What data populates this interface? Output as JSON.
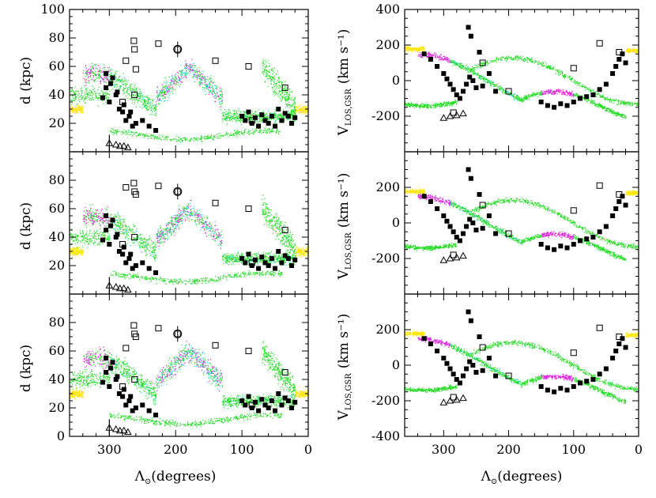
{
  "figure": {
    "description_free": true
  },
  "colors": {
    "green": "#22dd22",
    "cyan": "#22d0e6",
    "magenta": "#e020e0",
    "yellow": "#ffe600",
    "marker": "#000000"
  },
  "chart_data": [
    {
      "id": "left-top",
      "type": "scatter",
      "xlabel": "Λ⊙(degrees)",
      "ylabel": "d (kpc)",
      "xlim": [
        360,
        0
      ],
      "ylim": [
        0,
        100
      ],
      "xticks": [
        300,
        200,
        100,
        0
      ],
      "yticks": [
        20,
        40,
        60,
        80,
        100
      ],
      "show_xtick_labels": false,
      "series": [
        {
          "name": "model-stars",
          "style": "dots"
        },
        {
          "name": "filled-squares",
          "style": "filled-square",
          "x": [
            310,
            305,
            300,
            295,
            290,
            285,
            280,
            275,
            270,
            265,
            260,
            250,
            240,
            230,
            100,
            95,
            90,
            85,
            80,
            75,
            70,
            65,
            60,
            55,
            50,
            45,
            40,
            35,
            30,
            25,
            20,
            305,
            298,
            288,
            278,
            268
          ],
          "y": [
            38,
            45,
            35,
            52,
            40,
            30,
            28,
            22,
            25,
            18,
            20,
            22,
            18,
            15,
            25,
            22,
            28,
            20,
            24,
            18,
            26,
            22,
            20,
            25,
            18,
            30,
            22,
            27,
            25,
            20,
            24,
            55,
            48,
            42,
            33,
            28
          ]
        },
        {
          "name": "open-squares",
          "style": "open-square",
          "x": [
            275,
            263,
            262,
            260,
            226,
            197,
            140,
            90,
            85,
            35,
            262,
            280
          ],
          "y": [
            64,
            78,
            72,
            58,
            76,
            72,
            64,
            60,
            22,
            45,
            40,
            35
          ]
        },
        {
          "name": "open-triangles",
          "style": "open-triangle",
          "x": [
            300,
            290,
            284,
            278,
            272
          ],
          "y": [
            6,
            5,
            4,
            4,
            3
          ]
        }
      ]
    },
    {
      "id": "left-middle",
      "type": "scatter",
      "xlabel": "Λ⊙(degrees)",
      "ylabel": "d (kpc)",
      "xlim": [
        360,
        0
      ],
      "ylim": [
        0,
        100
      ],
      "xticks": [
        300,
        200,
        100,
        0
      ],
      "yticks": [
        20,
        40,
        60,
        80
      ],
      "show_xtick_labels": false,
      "series": [
        {
          "name": "model-stars",
          "style": "dots"
        },
        {
          "name": "filled-squares",
          "style": "filled-square",
          "x": [
            310,
            305,
            300,
            295,
            290,
            285,
            280,
            275,
            270,
            265,
            260,
            250,
            240,
            230,
            100,
            95,
            90,
            85,
            80,
            75,
            70,
            65,
            60,
            55,
            50,
            45,
            40,
            35,
            30,
            25,
            20,
            305,
            298,
            288,
            278,
            268
          ],
          "y": [
            38,
            45,
            35,
            52,
            40,
            30,
            28,
            22,
            25,
            18,
            20,
            22,
            18,
            15,
            25,
            22,
            28,
            20,
            24,
            18,
            26,
            22,
            20,
            25,
            18,
            30,
            22,
            27,
            25,
            20,
            24,
            55,
            48,
            42,
            33,
            28
          ]
        },
        {
          "name": "open-squares",
          "style": "open-square",
          "x": [
            275,
            263,
            262,
            260,
            226,
            197,
            140,
            90,
            85,
            35,
            262,
            280
          ],
          "y": [
            75,
            78,
            72,
            70,
            76,
            72,
            64,
            60,
            22,
            45,
            40,
            35
          ]
        },
        {
          "name": "open-triangles",
          "style": "open-triangle",
          "x": [
            300,
            290,
            284,
            278,
            272
          ],
          "y": [
            6,
            5,
            4,
            4,
            3
          ]
        }
      ]
    },
    {
      "id": "left-bottom",
      "type": "scatter",
      "xlabel": "Λ⊙(degrees)",
      "ylabel": "d (kpc)",
      "xlim": [
        360,
        0
      ],
      "ylim": [
        0,
        100
      ],
      "xticks": [
        300,
        200,
        100,
        0
      ],
      "yticks": [
        0,
        20,
        40,
        60,
        80
      ],
      "show_xtick_labels": true,
      "series": [
        {
          "name": "model-stars",
          "style": "dots"
        },
        {
          "name": "filled-squares",
          "style": "filled-square",
          "x": [
            310,
            305,
            300,
            295,
            290,
            285,
            280,
            275,
            270,
            265,
            260,
            250,
            240,
            230,
            100,
            95,
            90,
            85,
            80,
            75,
            70,
            65,
            60,
            55,
            50,
            45,
            40,
            35,
            30,
            25,
            20,
            305,
            298,
            288,
            278,
            268
          ],
          "y": [
            38,
            45,
            35,
            52,
            40,
            30,
            28,
            22,
            25,
            18,
            20,
            22,
            18,
            15,
            25,
            22,
            28,
            20,
            24,
            18,
            26,
            22,
            20,
            25,
            18,
            30,
            22,
            27,
            25,
            20,
            24,
            55,
            48,
            42,
            33,
            28
          ]
        },
        {
          "name": "open-squares",
          "style": "open-square",
          "x": [
            275,
            263,
            262,
            260,
            226,
            197,
            140,
            90,
            85,
            35,
            262,
            280
          ],
          "y": [
            62,
            78,
            72,
            70,
            76,
            72,
            64,
            60,
            22,
            45,
            40,
            35
          ]
        },
        {
          "name": "open-triangles",
          "style": "open-triangle",
          "x": [
            300,
            290,
            284,
            278,
            272
          ],
          "y": [
            6,
            5,
            4,
            4,
            3
          ]
        }
      ]
    },
    {
      "id": "right-top",
      "type": "scatter",
      "xlabel": "Λ⊙(degrees)",
      "ylabel": "VLOS,GSR (km s⁻¹)",
      "xlim": [
        360,
        0
      ],
      "ylim": [
        -400,
        400
      ],
      "xticks": [
        300,
        200,
        100,
        0
      ],
      "yticks": [
        -200,
        0,
        200,
        400
      ],
      "show_xtick_labels": false,
      "series": [
        {
          "name": "model-stars",
          "style": "dots"
        },
        {
          "name": "filled-squares",
          "style": "filled-square",
          "x": [
            330,
            320,
            310,
            300,
            295,
            290,
            285,
            280,
            275,
            270,
            265,
            260,
            255,
            250,
            240,
            230,
            220,
            150,
            140,
            130,
            120,
            110,
            100,
            90,
            80,
            70,
            60,
            50,
            40,
            35,
            30,
            25,
            20,
            262,
            258,
            245
          ],
          "y": [
            150,
            120,
            80,
            40,
            10,
            -20,
            -50,
            -80,
            -100,
            -60,
            -20,
            20,
            0,
            -40,
            -30,
            40,
            -60,
            -120,
            -140,
            -150,
            -130,
            -140,
            -120,
            -100,
            -90,
            -80,
            -50,
            -20,
            40,
            80,
            120,
            150,
            100,
            300,
            250,
            160
          ]
        },
        {
          "name": "open-squares",
          "style": "open-square",
          "x": [
            240,
            100,
            60,
            30,
            285,
            200
          ],
          "y": [
            100,
            70,
            210,
            160,
            -180,
            -60
          ]
        },
        {
          "name": "open-triangles",
          "style": "open-triangle",
          "x": [
            300,
            290,
            280,
            270
          ],
          "y": [
            -210,
            -200,
            -195,
            -185
          ]
        }
      ]
    },
    {
      "id": "right-middle",
      "type": "scatter",
      "xlabel": "Λ⊙(degrees)",
      "ylabel": "VLOS,GSR (km s⁻¹)",
      "xlim": [
        360,
        0
      ],
      "ylim": [
        -400,
        400
      ],
      "xticks": [
        300,
        200,
        100,
        0
      ],
      "yticks": [
        -200,
        0,
        200
      ],
      "show_xtick_labels": false,
      "series": [
        {
          "name": "model-stars",
          "style": "dots"
        },
        {
          "name": "filled-squares",
          "style": "filled-square",
          "x": [
            330,
            320,
            310,
            300,
            295,
            290,
            285,
            280,
            275,
            270,
            265,
            260,
            255,
            250,
            240,
            230,
            220,
            150,
            140,
            130,
            120,
            110,
            100,
            90,
            80,
            70,
            60,
            50,
            40,
            35,
            30,
            25,
            20,
            262,
            258,
            245
          ],
          "y": [
            150,
            120,
            80,
            40,
            10,
            -20,
            -50,
            -80,
            -100,
            -60,
            -20,
            20,
            0,
            -40,
            -30,
            40,
            -60,
            -120,
            -140,
            -150,
            -130,
            -140,
            -120,
            -100,
            -90,
            -80,
            -50,
            -20,
            40,
            80,
            120,
            150,
            100,
            300,
            250,
            160
          ]
        },
        {
          "name": "open-squares",
          "style": "open-square",
          "x": [
            240,
            100,
            60,
            30,
            285,
            200
          ],
          "y": [
            100,
            70,
            210,
            160,
            -180,
            -60
          ]
        },
        {
          "name": "open-triangles",
          "style": "open-triangle",
          "x": [
            300,
            290,
            280,
            270
          ],
          "y": [
            -210,
            -200,
            -195,
            -185
          ]
        }
      ]
    },
    {
      "id": "right-bottom",
      "type": "scatter",
      "xlabel": "Λ⊙(degrees)",
      "ylabel": "VLOS,GSR (km s⁻¹)",
      "xlim": [
        360,
        0
      ],
      "ylim": [
        -400,
        400
      ],
      "xticks": [
        300,
        200,
        100,
        0
      ],
      "yticks": [
        -400,
        -200,
        0,
        200
      ],
      "show_xtick_labels": true,
      "series": [
        {
          "name": "model-stars",
          "style": "dots"
        },
        {
          "name": "filled-squares",
          "style": "filled-square",
          "x": [
            330,
            320,
            310,
            300,
            295,
            290,
            285,
            280,
            275,
            270,
            265,
            260,
            255,
            250,
            240,
            230,
            220,
            150,
            140,
            130,
            120,
            110,
            100,
            90,
            80,
            70,
            60,
            50,
            40,
            35,
            30,
            25,
            20,
            262,
            258,
            245
          ],
          "y": [
            150,
            120,
            80,
            40,
            10,
            -20,
            -50,
            -80,
            -100,
            -60,
            -20,
            20,
            0,
            -40,
            -30,
            40,
            -60,
            -120,
            -140,
            -150,
            -130,
            -140,
            -120,
            -100,
            -90,
            -80,
            -50,
            -20,
            40,
            80,
            120,
            150,
            100,
            300,
            250,
            160
          ]
        },
        {
          "name": "open-squares",
          "style": "open-square",
          "x": [
            240,
            100,
            60,
            30,
            285,
            200
          ],
          "y": [
            100,
            70,
            210,
            160,
            -180,
            -60
          ]
        },
        {
          "name": "open-triangles",
          "style": "open-triangle",
          "x": [
            300,
            290,
            280,
            270
          ],
          "y": [
            -210,
            -200,
            -195,
            -185
          ]
        }
      ]
    }
  ],
  "labels": {
    "xaxis_symbol": "Λ",
    "xaxis_sub": "⊙",
    "xaxis_unit": "(degrees)",
    "d_ylabel": "d (kpc)",
    "v_ylabel_main": "V",
    "v_ylabel_sub": "LOS,GSR",
    "v_ylabel_unit": "(km s⁻¹)"
  }
}
